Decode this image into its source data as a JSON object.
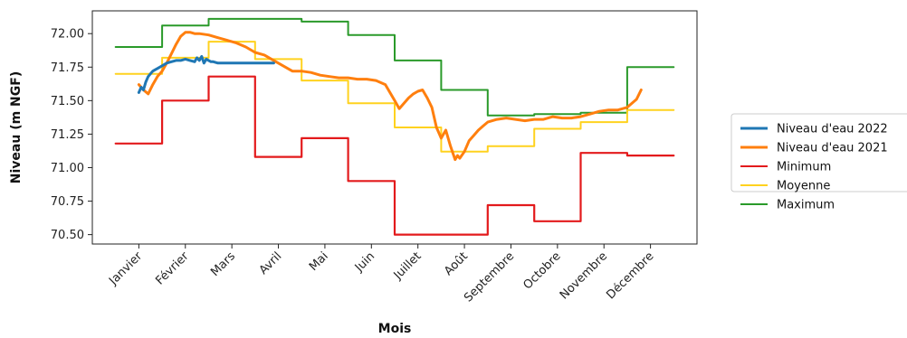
{
  "chart_data": {
    "type": "line",
    "title": "",
    "xlabel": "Mois",
    "ylabel": "Niveau (m NGF)",
    "categories": [
      "Janvier",
      "Février",
      "Mars",
      "Avril",
      "Mai",
      "Juin",
      "Juillet",
      "Août",
      "Septembre",
      "Octobre",
      "Novembre",
      "Décembre"
    ],
    "ylim": [
      70.43,
      72.17
    ],
    "yticks": [
      "70.50",
      "70.75",
      "71.00",
      "71.25",
      "71.50",
      "71.75",
      "72.00"
    ],
    "grid": false,
    "legend": "right, outside the plot",
    "series": [
      {
        "name": "Niveau d'eau 2022",
        "color": "#1f77b4",
        "width": 3,
        "kind": "line",
        "x": [
          0.5,
          0.55,
          0.6,
          0.65,
          0.7,
          0.75,
          0.8,
          0.85,
          0.9,
          1.0,
          1.1,
          1.2,
          1.3,
          1.4,
          1.5,
          1.6,
          1.7,
          1.75,
          1.8,
          1.85,
          1.9,
          1.95,
          2.0,
          2.05,
          2.1,
          2.2,
          2.4,
          2.6,
          2.8,
          3.0,
          3.2,
          3.4
        ],
        "y": [
          71.56,
          71.6,
          71.58,
          71.64,
          71.68,
          71.7,
          71.72,
          71.73,
          71.74,
          71.76,
          71.78,
          71.79,
          71.8,
          71.8,
          71.81,
          71.8,
          71.79,
          71.82,
          71.8,
          71.83,
          71.78,
          71.81,
          71.8,
          71.79,
          71.79,
          71.78,
          71.78,
          71.78,
          71.78,
          71.78,
          71.78,
          71.78
        ]
      },
      {
        "name": "Niveau d'eau 2021",
        "color": "#ff7f0e",
        "width": 3,
        "kind": "line",
        "x": [
          0.5,
          0.6,
          0.7,
          0.8,
          0.9,
          1.0,
          1.1,
          1.2,
          1.3,
          1.4,
          1.5,
          1.6,
          1.7,
          1.8,
          2.0,
          2.2,
          2.4,
          2.6,
          2.8,
          3.0,
          3.2,
          3.4,
          3.6,
          3.8,
          4.0,
          4.2,
          4.4,
          4.6,
          4.8,
          5.0,
          5.2,
          5.4,
          5.6,
          5.8,
          6.0,
          6.1,
          6.2,
          6.3,
          6.4,
          6.5,
          6.6,
          6.7,
          6.8,
          6.9,
          7.0,
          7.1,
          7.2,
          7.3,
          7.35,
          7.4,
          7.5,
          7.6,
          7.7,
          7.8,
          7.9,
          8.0,
          8.2,
          8.4,
          8.6,
          8.8,
          9.0,
          9.2,
          9.4,
          9.6,
          9.8,
          10.0,
          10.2,
          10.4,
          10.6,
          10.8,
          11.0,
          11.2,
          11.3
        ],
        "y": [
          71.62,
          71.58,
          71.55,
          71.62,
          71.68,
          71.72,
          71.78,
          71.85,
          71.92,
          71.98,
          72.01,
          72.01,
          72.0,
          72.0,
          71.99,
          71.97,
          71.95,
          71.93,
          71.9,
          71.86,
          71.84,
          71.8,
          71.76,
          71.72,
          71.72,
          71.71,
          71.69,
          71.68,
          71.67,
          71.67,
          71.66,
          71.66,
          71.65,
          71.62,
          71.5,
          71.44,
          71.48,
          71.52,
          71.55,
          71.57,
          71.58,
          71.52,
          71.45,
          71.3,
          71.22,
          71.28,
          71.16,
          71.06,
          71.09,
          71.07,
          71.12,
          71.2,
          71.24,
          71.28,
          71.31,
          71.34,
          71.36,
          71.37,
          71.36,
          71.35,
          71.36,
          71.36,
          71.38,
          71.37,
          71.37,
          71.38,
          71.4,
          71.42,
          71.43,
          71.43,
          71.45,
          71.51,
          71.58
        ]
      },
      {
        "name": "Minimum",
        "color": "#e31a1c",
        "width": 2.2,
        "kind": "step",
        "steps": [
          71.18,
          71.5,
          71.68,
          71.08,
          71.22,
          70.9,
          70.5,
          70.5,
          70.72,
          70.6,
          71.11,
          71.09
        ]
      },
      {
        "name": "Moyenne",
        "color": "#ffd21f",
        "width": 2,
        "kind": "step",
        "steps": [
          71.7,
          71.82,
          71.94,
          71.81,
          71.65,
          71.48,
          71.3,
          71.12,
          71.16,
          71.29,
          71.34,
          71.43
        ]
      },
      {
        "name": "Maximum",
        "color": "#2a9a2a",
        "width": 2,
        "kind": "step",
        "steps": [
          71.9,
          72.06,
          72.11,
          72.11,
          72.09,
          71.99,
          71.8,
          71.58,
          71.39,
          71.4,
          71.41,
          71.75
        ]
      }
    ]
  }
}
